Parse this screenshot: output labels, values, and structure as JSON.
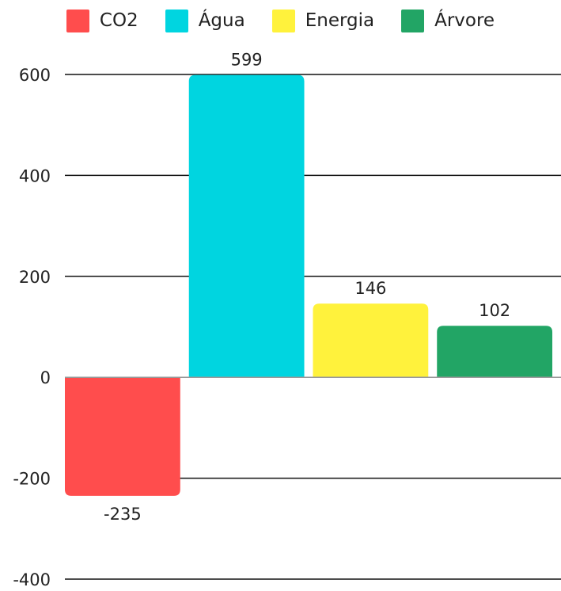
{
  "chart_data": {
    "type": "bar",
    "categories": [
      "CO2",
      "Água",
      "Energia",
      "Árvore"
    ],
    "values": [
      -235,
      599,
      146,
      102
    ],
    "colors": [
      "#ff4d4d",
      "#00d5e0",
      "#fff23c",
      "#22a565"
    ],
    "title": "",
    "xlabel": "",
    "ylabel": "",
    "ylim": [
      -400,
      600
    ],
    "yticks": [
      600,
      400,
      200,
      0,
      -200,
      -400
    ],
    "grid": true,
    "legend_position": "top",
    "data_labels": [
      "-235",
      "599",
      "146",
      "102"
    ]
  },
  "legend": [
    {
      "label": "CO2",
      "color": "#ff4d4d"
    },
    {
      "label": "Água",
      "color": "#00d5e0"
    },
    {
      "label": "Energia",
      "color": "#fff23c"
    },
    {
      "label": "Árvore",
      "color": "#22a565"
    }
  ]
}
